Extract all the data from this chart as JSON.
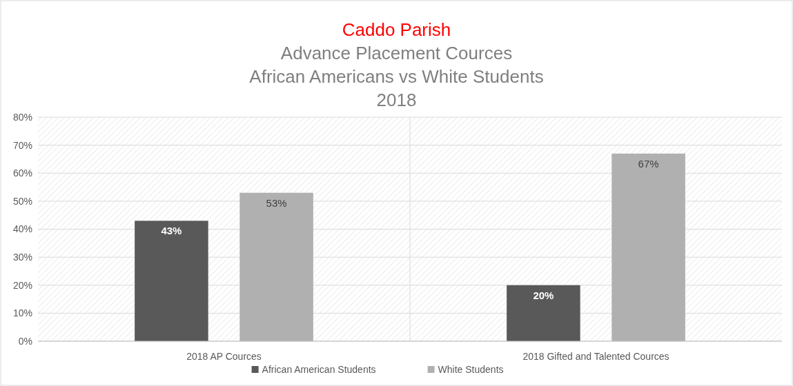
{
  "chart_data": {
    "type": "bar",
    "title": "Caddo Parish",
    "subtitle": "Advance Placement Cources\nAfrican Americans vs White Students\n2018",
    "categories": [
      "2018 AP Cources",
      "2018 Gifted and Talented Cources"
    ],
    "series": [
      {
        "name": "African American Students",
        "color": "#595959",
        "values": [
          43,
          20
        ],
        "value_labels": [
          "43%",
          "20%"
        ]
      },
      {
        "name": "White Students",
        "color": "#b0b0b0",
        "values": [
          53,
          67
        ],
        "value_labels": [
          "53%",
          "67%"
        ]
      }
    ],
    "ylim": [
      0,
      80
    ],
    "yticks": [
      {
        "value": 0,
        "label": "0%"
      },
      {
        "value": 10,
        "label": "10%"
      },
      {
        "value": 20,
        "label": "20%"
      },
      {
        "value": 30,
        "label": "30%"
      },
      {
        "value": 40,
        "label": "40%"
      },
      {
        "value": 50,
        "label": "50%"
      },
      {
        "value": 60,
        "label": "60%"
      },
      {
        "value": 70,
        "label": "70%"
      },
      {
        "value": 80,
        "label": "80%"
      }
    ],
    "grid": true,
    "legend": "bottom"
  }
}
